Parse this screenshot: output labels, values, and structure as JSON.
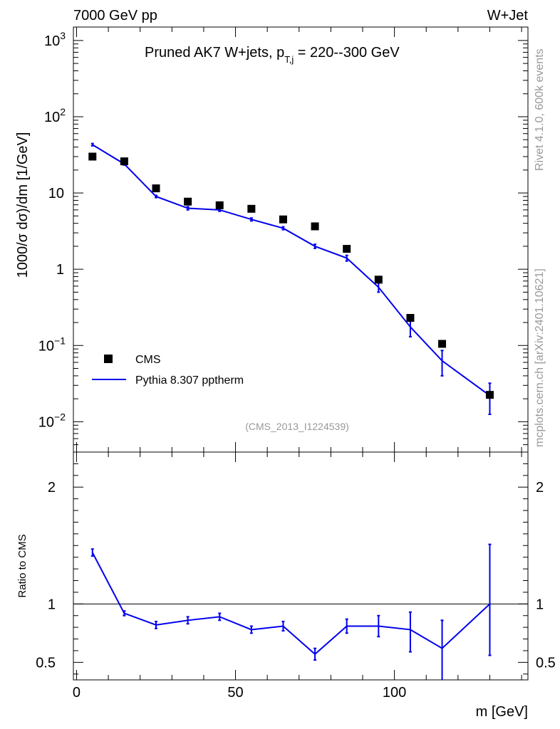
{
  "header": {
    "left": "7000 GeV pp",
    "right": "W+Jet"
  },
  "side": {
    "top": "Rivet 4.1.0,  600k events",
    "bottom": "mcplots.cern.ch [arXiv:2401.10621]"
  },
  "colors": {
    "data": "#000000",
    "mc": "#0000ee",
    "analysis": "#999999"
  },
  "chart_data": [
    {
      "type": "scatter",
      "panel": "main",
      "title_prefix": "Pruned AK7 W+jets, p",
      "title_sub": "T,j",
      "title_suffix": " = 220--300 GeV",
      "ylabel": "1000/σ   dσ)/dm [1/GeV]",
      "yscale": "log",
      "ylim": [
        0.004,
        1500
      ],
      "xlim": [
        -1,
        142
      ],
      "y_ticks": [
        {
          "v": 1000,
          "base": "10",
          "exp": "3"
        },
        {
          "v": 100,
          "base": "10",
          "exp": "2"
        },
        {
          "v": 10,
          "base": "10",
          "exp": ""
        },
        {
          "v": 1,
          "base": "1",
          "exp": ""
        },
        {
          "v": 0.1,
          "base": "10",
          "exp": "−1"
        },
        {
          "v": 0.01,
          "base": "10",
          "exp": "−2"
        }
      ],
      "analysis_label": "(CMS_2013_I1224539)",
      "legend": [
        "CMS",
        "Pythia 8.307 pptherm"
      ],
      "x": [
        5,
        15,
        25,
        35,
        45,
        55,
        65,
        75,
        85,
        95,
        105,
        115,
        130
      ],
      "series": [
        {
          "name": "CMS",
          "style": "markers",
          "values": [
            30,
            26,
            11.5,
            7.7,
            6.9,
            6.2,
            4.5,
            3.65,
            1.85,
            0.73,
            0.23,
            0.105,
            0.0225
          ]
        },
        {
          "name": "Pythia 8.307 pptherm",
          "style": "line",
          "values": [
            43,
            24,
            9.0,
            6.3,
            6.0,
            4.5,
            3.45,
            2.0,
            1.4,
            0.58,
            0.175,
            0.063,
            0.022
          ],
          "err_low": [
            41.5,
            23.2,
            8.7,
            6.0,
            5.75,
            4.3,
            3.3,
            1.88,
            1.28,
            0.5,
            0.13,
            0.04,
            0.0125
          ],
          "err_high": [
            44.5,
            24.8,
            9.3,
            6.6,
            6.25,
            4.7,
            3.6,
            2.12,
            1.52,
            0.66,
            0.22,
            0.086,
            0.032
          ]
        }
      ]
    },
    {
      "type": "line",
      "panel": "ratio",
      "ylabel": "Ratio to CMS",
      "xlabel": "m [GeV]",
      "ylim": [
        0.35,
        2.3
      ],
      "xlim": [
        -1,
        142
      ],
      "y_ticks": [
        {
          "v": 0.5,
          "label": "0.5"
        },
        {
          "v": 1,
          "label": "1"
        },
        {
          "v": 2,
          "label": "2"
        }
      ],
      "x_ticks": [
        {
          "v": 0,
          "label": "0"
        },
        {
          "v": 50,
          "label": "50"
        },
        {
          "v": 100,
          "label": "100"
        }
      ],
      "x": [
        5,
        15,
        25,
        35,
        45,
        55,
        65,
        75,
        85,
        95,
        105,
        115,
        130
      ],
      "series": [
        {
          "name": "Pythia 8.307 pptherm / CMS",
          "values": [
            1.44,
            0.92,
            0.82,
            0.86,
            0.89,
            0.78,
            0.81,
            0.57,
            0.81,
            0.81,
            0.78,
            0.62,
            1.0
          ],
          "err_low": [
            1.41,
            0.9,
            0.79,
            0.83,
            0.86,
            0.75,
            0.77,
            0.52,
            0.75,
            0.72,
            0.59,
            0.32,
            0.56
          ],
          "err_high": [
            1.47,
            0.94,
            0.85,
            0.89,
            0.92,
            0.81,
            0.85,
            0.62,
            0.87,
            0.9,
            0.93,
            0.86,
            1.51
          ]
        }
      ]
    }
  ]
}
